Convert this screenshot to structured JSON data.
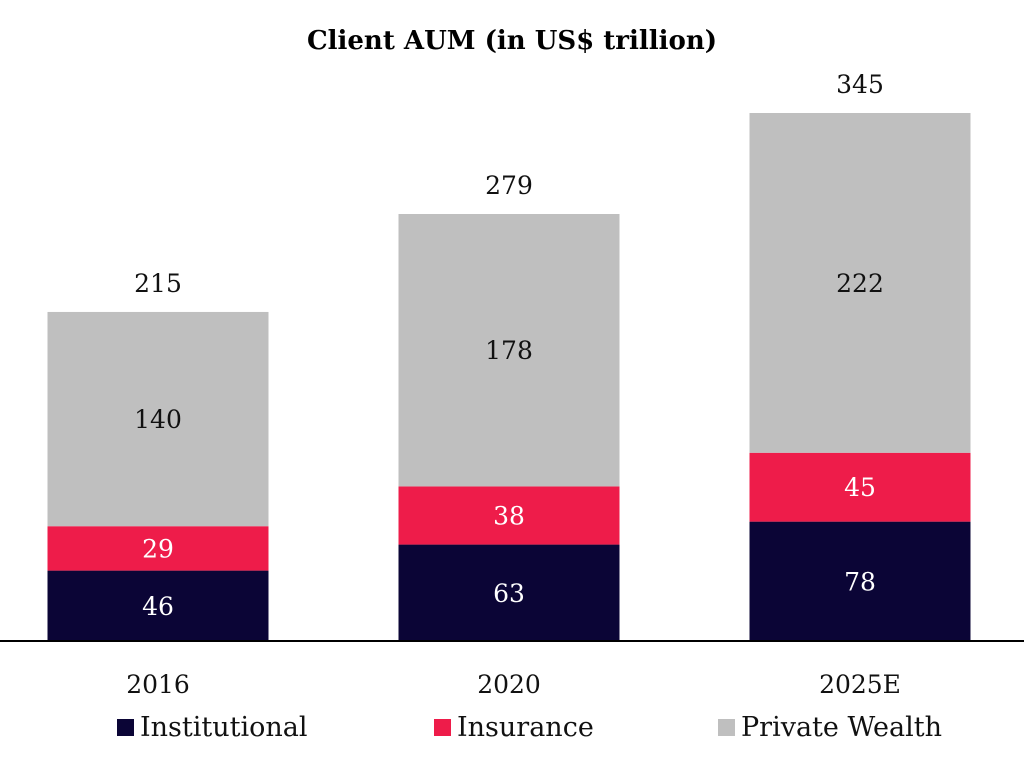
{
  "chart_data": {
    "type": "bar",
    "stacked": true,
    "title": "Client AUM (in US$ trillion)",
    "xlabel": "",
    "ylabel": "",
    "categories": [
      "2016",
      "2020",
      "2025E"
    ],
    "series": [
      {
        "name": "Institutional",
        "values": [
          46,
          63,
          78
        ],
        "color": "#0b0536",
        "label_color": "#ffffff"
      },
      {
        "name": "Insurance",
        "values": [
          29,
          38,
          45
        ],
        "color": "#ee1c4a",
        "label_color": "#ffffff"
      },
      {
        "name": "Private Wealth",
        "values": [
          140,
          178,
          222
        ],
        "color": "#bfbfbf",
        "label_color": "#111111"
      }
    ],
    "totals": [
      "215",
      "279",
      "345"
    ],
    "ylim": [
      0,
      345
    ],
    "grid": false,
    "legend_position": "bottom"
  }
}
